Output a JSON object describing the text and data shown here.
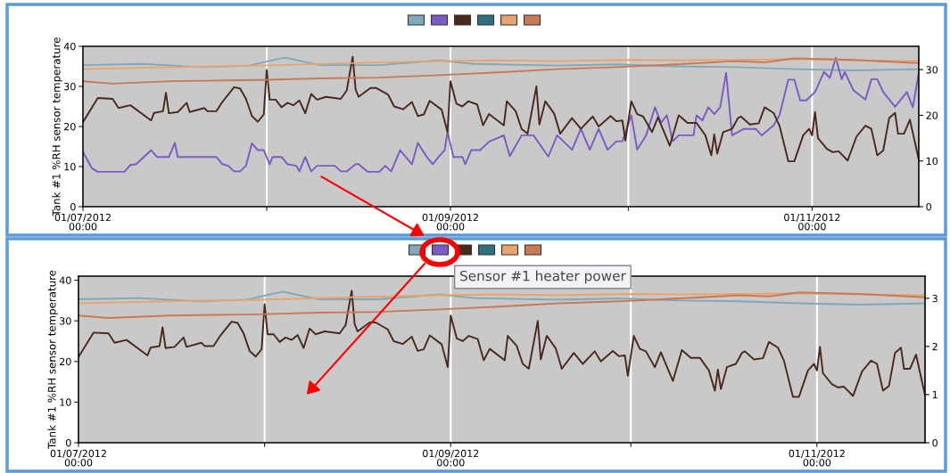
{
  "chart_data": [
    {
      "type": "line",
      "ylabel": "Tank #1 %RH sensor temperature",
      "ylim": [
        0,
        40
      ],
      "yticks": [
        0,
        10,
        20,
        30,
        40
      ],
      "y2lim": [
        0,
        35.1
      ],
      "y2ticks": [
        0,
        10,
        20,
        30
      ],
      "xlim": [
        "2012-07-01",
        "2012-11-19"
      ],
      "xticks": [
        {
          "value": "2012-07-01",
          "label": "01/07/2012\n00:00"
        },
        {
          "value": "2012-08-01",
          "label": null
        },
        {
          "value": "2012-09-01",
          "label": "01/09/2012\n00:00"
        },
        {
          "value": "2012-10-01",
          "label": null
        },
        {
          "value": "2012-11-01",
          "label": "01/11/2012\n00:00"
        }
      ],
      "grid": "x",
      "marker": "none",
      "line_style": "solid",
      "series": [
        {
          "color": "#7fa8b8",
          "x": [
            "2012-07-01",
            "2012-07-11",
            "2012-07-21",
            "2012-07-29",
            "2012-08-04",
            "2012-08-10",
            "2012-08-20",
            "2012-08-30",
            "2012-09-05",
            "2012-09-19",
            "2012-09-29",
            "2012-10-09",
            "2012-10-19",
            "2012-10-29",
            "2012-11-08",
            "2012-11-19"
          ],
          "values": [
            35.3,
            35.6,
            34.8,
            35.2,
            37.2,
            35.3,
            35.3,
            36.5,
            35.6,
            35.2,
            35.5,
            35.0,
            34.8,
            34.3,
            34.0,
            34.3
          ]
        },
        {
          "color": "#7b5cc4",
          "x": [
            "2012-07-01",
            "2012-07-02T12:00",
            "2012-07-03T12:00",
            "2012-07-08",
            "2012-07-09",
            "2012-07-10",
            "2012-07-12T12:00",
            "2012-07-13T12:00",
            "2012-07-15T12:00",
            "2012-07-16T12:00",
            "2012-07-17",
            "2012-07-23T12:00",
            "2012-07-24T12:00",
            "2012-07-25T12:00",
            "2012-07-26T12:00",
            "2012-07-27T12:00",
            "2012-07-28T12:00",
            "2012-07-29T12:00",
            "2012-07-30T12:00",
            "2012-07-31T12:00",
            "2012-08-01T12:00",
            "2012-08-02",
            "2012-08-03T12:00",
            "2012-08-04T12:00",
            "2012-08-06",
            "2012-08-06T12:00",
            "2012-08-07T12:00",
            "2012-08-08T12:00",
            "2012-08-09T12:00",
            "2012-08-12T12:00",
            "2012-08-13T12:00",
            "2012-08-14T12:00",
            "2012-08-16",
            "2012-08-16T12:00",
            "2012-08-18",
            "2012-08-20",
            "2012-08-21",
            "2012-08-22",
            "2012-08-23T12:00",
            "2012-08-25T12:00",
            "2012-08-26T12:00",
            "2012-08-28",
            "2012-08-29",
            "2012-08-30",
            "2012-08-31",
            "2012-08-31T12:00",
            "2012-09-01T12:00",
            "2012-09-03",
            "2012-09-03T12:00",
            "2012-09-04T12:00",
            "2012-09-06",
            "2012-09-07T12:00",
            "2012-09-10",
            "2012-09-11",
            "2012-09-13",
            "2012-09-15",
            "2012-09-17T12:00",
            "2012-09-19",
            "2012-09-21T12:00",
            "2012-09-23",
            "2012-09-24T12:00",
            "2012-09-26",
            "2012-09-27T12:00",
            "2012-09-29",
            "2012-09-30",
            "2012-10-01T12:00",
            "2012-10-02T12:00",
            "2012-10-04",
            "2012-10-05T12:00",
            "2012-10-06T12:00",
            "2012-10-07T12:00",
            "2012-10-08T12:00",
            "2012-10-09T12:00",
            "2012-10-12",
            "2012-10-12T12:00",
            "2012-10-13T12:00",
            "2012-10-14T12:00",
            "2012-10-15T12:00",
            "2012-10-16T12:00",
            "2012-10-17T12:00",
            "2012-10-18T12:00",
            "2012-10-20T12:00",
            "2012-10-22T12:00",
            "2012-10-23T12:00",
            "2012-10-25T12:00",
            "2012-10-26T12:00",
            "2012-10-28",
            "2012-10-29",
            "2012-10-30",
            "2012-10-31",
            "2012-11-01T12:00",
            "2012-11-03",
            "2012-11-04",
            "2012-11-05",
            "2012-11-06",
            "2012-11-06T12:00",
            "2012-11-08",
            "2012-11-10",
            "2012-11-11",
            "2012-11-12",
            "2012-11-13",
            "2012-11-15",
            "2012-11-17",
            "2012-11-18",
            "2012-11-19"
          ],
          "values": [
            13.7,
            9.6,
            8.7,
            8.7,
            10.4,
            10.6,
            14.1,
            12.4,
            12.4,
            15.9,
            12.4,
            12.4,
            10.6,
            10.2,
            8.8,
            8.8,
            10.2,
            15.8,
            14.1,
            14.1,
            10.6,
            12.4,
            12.4,
            10.6,
            10.2,
            8.8,
            12.4,
            8.8,
            10.2,
            10.2,
            8.8,
            8.8,
            10.6,
            10.6,
            8.7,
            8.7,
            10.2,
            8.8,
            14.1,
            10.6,
            15.9,
            12.4,
            10.6,
            12.4,
            14.1,
            18.6,
            12.4,
            12.4,
            10.6,
            14.1,
            14.1,
            16.2,
            17.8,
            12.6,
            17.8,
            17.8,
            12.5,
            17.8,
            14.2,
            19.4,
            14.2,
            19.4,
            14.2,
            16.3,
            16.3,
            22.8,
            14.2,
            17.8,
            24.8,
            20.9,
            22.8,
            16.3,
            17.8,
            17.8,
            22.8,
            21.5,
            24.8,
            23.1,
            24.8,
            33.4,
            17.8,
            19.4,
            19.4,
            17.8,
            20.3,
            22.8,
            31.7,
            31.7,
            26.5,
            26.5,
            28.6,
            33.6,
            32.1,
            37.1,
            31.8,
            33.6,
            29.0,
            26.7,
            31.8,
            31.8,
            28.6,
            24.9,
            28.6,
            24.8,
            33.4
          ]
        },
        {
          "color": "#4a2a1e",
          "x": [
            "2012-07-01",
            "2012-07-03T12:00",
            "2012-07-06",
            "2012-07-07",
            "2012-07-09",
            "2012-07-12T12:00",
            "2012-07-13",
            "2012-07-14T12:00",
            "2012-07-15",
            "2012-07-15T12:00",
            "2012-07-17",
            "2012-07-18T12:00",
            "2012-07-19",
            "2012-07-21T12:00",
            "2012-07-22",
            "2012-07-23T12:00",
            "2012-07-24T12:00",
            "2012-07-26T12:00",
            "2012-07-27T12:00",
            "2012-07-28T12:00",
            "2012-07-29T12:00",
            "2012-07-30T12:00",
            "2012-07-31T12:00",
            "2012-08-01",
            "2012-08-01T12:00",
            "2012-08-02T12:00",
            "2012-08-03T12:00",
            "2012-08-04T12:00",
            "2012-08-05T12:00",
            "2012-08-06T12:00",
            "2012-08-07T12:00",
            "2012-08-08T12:00",
            "2012-08-09T12:00",
            "2012-08-11",
            "2012-08-13T12:00",
            "2012-08-14T12:00",
            "2012-08-15T12:00",
            "2012-08-16",
            "2012-08-16T12:00",
            "2012-08-18T12:00",
            "2012-08-19T12:00",
            "2012-08-21T12:00",
            "2012-08-22T12:00",
            "2012-08-24",
            "2012-08-25T12:00",
            "2012-08-26T12:00",
            "2012-08-27T12:00",
            "2012-08-28T12:00",
            "2012-08-30T12:00",
            "2012-08-31T12:00",
            "2012-09-01",
            "2012-09-02",
            "2012-09-03",
            "2012-09-04",
            "2012-09-05T12:00",
            "2012-09-06T12:00",
            "2012-09-07T12:00",
            "2012-09-10",
            "2012-09-10T12:00",
            "2012-09-12",
            "2012-09-13",
            "2012-09-14",
            "2012-09-15T12:00",
            "2012-09-16",
            "2012-09-17",
            "2012-09-18T12:00",
            "2012-09-19T12:00",
            "2012-09-21T12:00",
            "2012-09-23",
            "2012-09-25",
            "2012-09-26",
            "2012-09-28",
            "2012-09-29",
            "2012-09-30",
            "2012-09-30T12:00",
            "2012-10-01T12:00",
            "2012-10-02T12:00",
            "2012-10-03T12:00",
            "2012-10-05",
            "2012-10-06",
            "2012-10-08",
            "2012-10-09T12:00",
            "2012-10-11",
            "2012-10-12T12:00",
            "2012-10-14",
            "2012-10-15",
            "2012-10-15T12:00",
            "2012-10-16",
            "2012-10-17",
            "2012-10-18T12:00",
            "2012-10-19T12:00",
            "2012-10-20",
            "2012-10-21T12:00",
            "2012-10-23",
            "2012-10-24",
            "2012-10-25T12:00",
            "2012-10-26T12:00",
            "2012-10-28",
            "2012-10-29",
            "2012-10-30T12:00",
            "2012-10-31T12:00",
            "2012-11-01",
            "2012-11-01T12:00",
            "2012-11-02",
            "2012-11-03T12:00",
            "2012-11-04T12:00",
            "2012-11-05T12:00",
            "2012-11-07",
            "2012-11-08T12:00",
            "2012-11-10",
            "2012-11-11",
            "2012-11-12",
            "2012-11-13",
            "2012-11-14",
            "2012-11-15",
            "2012-11-15T12:00",
            "2012-11-16T12:00",
            "2012-11-17T12:00",
            "2012-11-19"
          ],
          "values": [
            21.1,
            27.1,
            26.9,
            24.6,
            25.3,
            21.5,
            23.4,
            23.8,
            28.4,
            23.3,
            23.6,
            25.9,
            23.6,
            24.6,
            23.8,
            23.8,
            26.1,
            29.8,
            29.5,
            26.9,
            22.6,
            21.2,
            23.0,
            34.1,
            26.7,
            26.7,
            24.8,
            25.9,
            25.3,
            26.5,
            23.3,
            28.1,
            26.7,
            27.4,
            26.9,
            29.0,
            37.4,
            29.2,
            27.4,
            29.6,
            29.6,
            27.9,
            25.0,
            24.3,
            26.1,
            22.6,
            23.0,
            26.4,
            24.2,
            18.6,
            31.3,
            25.7,
            25.0,
            26.3,
            25.5,
            20.3,
            23.1,
            20.3,
            26.3,
            23.8,
            19.4,
            18.2,
            30.0,
            20.5,
            26.3,
            23.2,
            18.2,
            22.1,
            19.4,
            22.5,
            20.0,
            22.6,
            21.3,
            21.5,
            16.5,
            26.3,
            23.1,
            22.5,
            18.6,
            22.3,
            15.2,
            22.8,
            20.9,
            20.9,
            17.8,
            12.8,
            18.0,
            13.2,
            18.6,
            19.4,
            22.1,
            22.5,
            20.5,
            20.8,
            24.8,
            23.4,
            20.2,
            11.3,
            11.3,
            17.8,
            19.4,
            17.8,
            23.6,
            17.1,
            14.4,
            13.6,
            13.8,
            11.5,
            17.5,
            20.2,
            19.4,
            12.8,
            14.0,
            22.1,
            23.4,
            18.2,
            18.2,
            21.7,
            11.7
          ]
        },
        {
          "color": "#2e6f80"
        },
        {
          "color": "#e8a46e",
          "x": [
            "2012-07-01",
            "2012-07-16",
            "2012-07-31",
            "2012-08-15",
            "2012-08-30",
            "2012-09-09",
            "2012-09-19",
            "2012-10-01",
            "2012-10-09",
            "2012-10-19",
            "2012-10-29",
            "2012-11-08",
            "2012-11-19"
          ],
          "values": [
            34.3,
            34.8,
            35.2,
            35.8,
            36.3,
            36.5,
            36.3,
            36.6,
            36.5,
            36.6,
            36.8,
            36.5,
            36.3
          ]
        },
        {
          "color": "#c87a55",
          "x": [
            "2012-07-01",
            "2012-07-06",
            "2012-07-16",
            "2012-07-31",
            "2012-08-10",
            "2012-08-20",
            "2012-08-30",
            "2012-09-09",
            "2012-09-19",
            "2012-09-29",
            "2012-10-09",
            "2012-10-19",
            "2012-10-24",
            "2012-10-29",
            "2012-11-08",
            "2012-11-19"
          ],
          "values": [
            31.3,
            30.7,
            31.3,
            31.6,
            32.0,
            32.2,
            32.8,
            33.5,
            34.3,
            34.8,
            35.5,
            36.3,
            36.0,
            37.0,
            36.6,
            35.8
          ]
        }
      ]
    },
    {
      "type": "line",
      "ylabel": "Tank #1 %RH sensor temperature",
      "ylim": [
        0,
        41
      ],
      "yticks": [
        0,
        10,
        20,
        30,
        40
      ],
      "y2lim": [
        0,
        3.46
      ],
      "y2ticks": [
        0,
        1,
        2,
        3
      ],
      "xlim": [
        "2012-07-01",
        "2012-11-19"
      ],
      "xticks": [
        {
          "value": "2012-07-01",
          "label": "01/07/2012\n00:00"
        },
        {
          "value": "2012-08-01",
          "label": null
        },
        {
          "value": "2012-09-01",
          "label": "01/09/2012\n00:00"
        },
        {
          "value": "2012-10-01",
          "label": null
        },
        {
          "value": "2012-11-01",
          "label": "01/11/2012\n00:00"
        }
      ],
      "grid": "x",
      "marker": "none",
      "line_style": "solid",
      "annotations": [
        "Sensor #1 heater power"
      ],
      "series": [
        {
          "color": "#7fa8b8",
          "x": [
            "2012-07-01",
            "2012-07-11",
            "2012-07-21",
            "2012-07-29",
            "2012-08-04",
            "2012-08-10",
            "2012-08-20",
            "2012-08-30",
            "2012-09-05",
            "2012-09-19",
            "2012-09-29",
            "2012-10-09",
            "2012-10-19",
            "2012-10-29",
            "2012-11-08",
            "2012-11-19"
          ],
          "values": [
            35.3,
            35.6,
            34.8,
            35.2,
            37.2,
            35.3,
            35.3,
            36.5,
            35.6,
            35.2,
            35.5,
            35.0,
            34.8,
            34.3,
            34.0,
            34.3
          ]
        },
        {
          "color": "#7b5cc4"
        },
        {
          "color": "#4a2a1e",
          "x": [
            "2012-07-01",
            "2012-07-03T12:00",
            "2012-07-06",
            "2012-07-07",
            "2012-07-09",
            "2012-07-12T12:00",
            "2012-07-13",
            "2012-07-14T12:00",
            "2012-07-15",
            "2012-07-15T12:00",
            "2012-07-17",
            "2012-07-18T12:00",
            "2012-07-19",
            "2012-07-21T12:00",
            "2012-07-22",
            "2012-07-23T12:00",
            "2012-07-24T12:00",
            "2012-07-26T12:00",
            "2012-07-27T12:00",
            "2012-07-28T12:00",
            "2012-07-29T12:00",
            "2012-07-30T12:00",
            "2012-07-31T12:00",
            "2012-08-01",
            "2012-08-01T12:00",
            "2012-08-02T12:00",
            "2012-08-03T12:00",
            "2012-08-04T12:00",
            "2012-08-05T12:00",
            "2012-08-06T12:00",
            "2012-08-07T12:00",
            "2012-08-08T12:00",
            "2012-08-09T12:00",
            "2012-08-11",
            "2012-08-13T12:00",
            "2012-08-14T12:00",
            "2012-08-15T12:00",
            "2012-08-16",
            "2012-08-16T12:00",
            "2012-08-18T12:00",
            "2012-08-19T12:00",
            "2012-08-21T12:00",
            "2012-08-22T12:00",
            "2012-08-24",
            "2012-08-25T12:00",
            "2012-08-26T12:00",
            "2012-08-27T12:00",
            "2012-08-28T12:00",
            "2012-08-30T12:00",
            "2012-08-31T12:00",
            "2012-09-01",
            "2012-09-02",
            "2012-09-03",
            "2012-09-04",
            "2012-09-05T12:00",
            "2012-09-06T12:00",
            "2012-09-07T12:00",
            "2012-09-10",
            "2012-09-10T12:00",
            "2012-09-12",
            "2012-09-13",
            "2012-09-14",
            "2012-09-15T12:00",
            "2012-09-16",
            "2012-09-17",
            "2012-09-18T12:00",
            "2012-09-19T12:00",
            "2012-09-21T12:00",
            "2012-09-23",
            "2012-09-25",
            "2012-09-26",
            "2012-09-28",
            "2012-09-29",
            "2012-09-30",
            "2012-09-30T12:00",
            "2012-10-01T12:00",
            "2012-10-02T12:00",
            "2012-10-03T12:00",
            "2012-10-05",
            "2012-10-06",
            "2012-10-08",
            "2012-10-09T12:00",
            "2012-10-11",
            "2012-10-12T12:00",
            "2012-10-14",
            "2012-10-15",
            "2012-10-15T12:00",
            "2012-10-16",
            "2012-10-17",
            "2012-10-18T12:00",
            "2012-10-19T12:00",
            "2012-10-20",
            "2012-10-21T12:00",
            "2012-10-23",
            "2012-10-24",
            "2012-10-25T12:00",
            "2012-10-26T12:00",
            "2012-10-28",
            "2012-10-29",
            "2012-10-30T12:00",
            "2012-10-31T12:00",
            "2012-11-01",
            "2012-11-01T12:00",
            "2012-11-02",
            "2012-11-03T12:00",
            "2012-11-04T12:00",
            "2012-11-05T12:00",
            "2012-11-07",
            "2012-11-08T12:00",
            "2012-11-10",
            "2012-11-11",
            "2012-11-12",
            "2012-11-13",
            "2012-11-14",
            "2012-11-15",
            "2012-11-15T12:00",
            "2012-11-16T12:00",
            "2012-11-17T12:00",
            "2012-11-19"
          ],
          "values": [
            21.1,
            27.1,
            26.9,
            24.6,
            25.3,
            21.5,
            23.4,
            23.8,
            28.4,
            23.3,
            23.6,
            25.9,
            23.6,
            24.6,
            23.8,
            23.8,
            26.1,
            29.8,
            29.5,
            26.9,
            22.6,
            21.2,
            23.0,
            34.1,
            26.7,
            26.7,
            24.8,
            25.9,
            25.3,
            26.5,
            23.3,
            28.1,
            26.7,
            27.4,
            26.9,
            29.0,
            37.4,
            29.2,
            27.4,
            29.6,
            29.6,
            27.9,
            25.0,
            24.3,
            26.1,
            22.6,
            23.0,
            26.4,
            24.2,
            18.6,
            31.3,
            25.7,
            25.0,
            26.3,
            25.5,
            20.3,
            23.1,
            20.3,
            26.3,
            23.8,
            19.4,
            18.2,
            30.0,
            20.5,
            26.3,
            23.2,
            18.2,
            22.1,
            19.4,
            22.5,
            20.0,
            22.6,
            21.3,
            21.5,
            16.5,
            26.3,
            23.1,
            22.5,
            18.6,
            22.3,
            15.2,
            22.8,
            20.9,
            20.9,
            17.8,
            12.8,
            18.0,
            13.2,
            18.6,
            19.4,
            22.1,
            22.5,
            20.5,
            20.8,
            24.8,
            23.4,
            20.2,
            11.3,
            11.3,
            17.8,
            19.4,
            17.8,
            23.6,
            17.1,
            14.4,
            13.6,
            13.8,
            11.5,
            17.5,
            20.2,
            19.4,
            12.8,
            14.0,
            22.1,
            23.4,
            18.2,
            18.2,
            21.7,
            11.7
          ]
        },
        {
          "color": "#2e6f80"
        },
        {
          "color": "#e8a46e",
          "x": [
            "2012-07-01",
            "2012-07-16",
            "2012-07-31",
            "2012-08-15",
            "2012-08-30",
            "2012-09-09",
            "2012-09-19",
            "2012-10-01",
            "2012-10-09",
            "2012-10-19",
            "2012-10-29",
            "2012-11-08",
            "2012-11-19"
          ],
          "values": [
            34.3,
            34.8,
            35.2,
            35.8,
            36.3,
            36.5,
            36.3,
            36.6,
            36.5,
            36.6,
            36.8,
            36.5,
            36.3
          ]
        },
        {
          "color": "#c87a55",
          "x": [
            "2012-07-01",
            "2012-07-06",
            "2012-07-16",
            "2012-07-31",
            "2012-08-10",
            "2012-08-20",
            "2012-08-30",
            "2012-09-09",
            "2012-09-19",
            "2012-09-29",
            "2012-10-09",
            "2012-10-19",
            "2012-10-24",
            "2012-10-29",
            "2012-11-08",
            "2012-11-19"
          ],
          "values": [
            31.3,
            30.7,
            31.3,
            31.6,
            32.0,
            32.2,
            32.8,
            33.5,
            34.3,
            34.8,
            35.5,
            36.3,
            36.0,
            37.0,
            36.6,
            35.8
          ]
        }
      ]
    }
  ]
}
